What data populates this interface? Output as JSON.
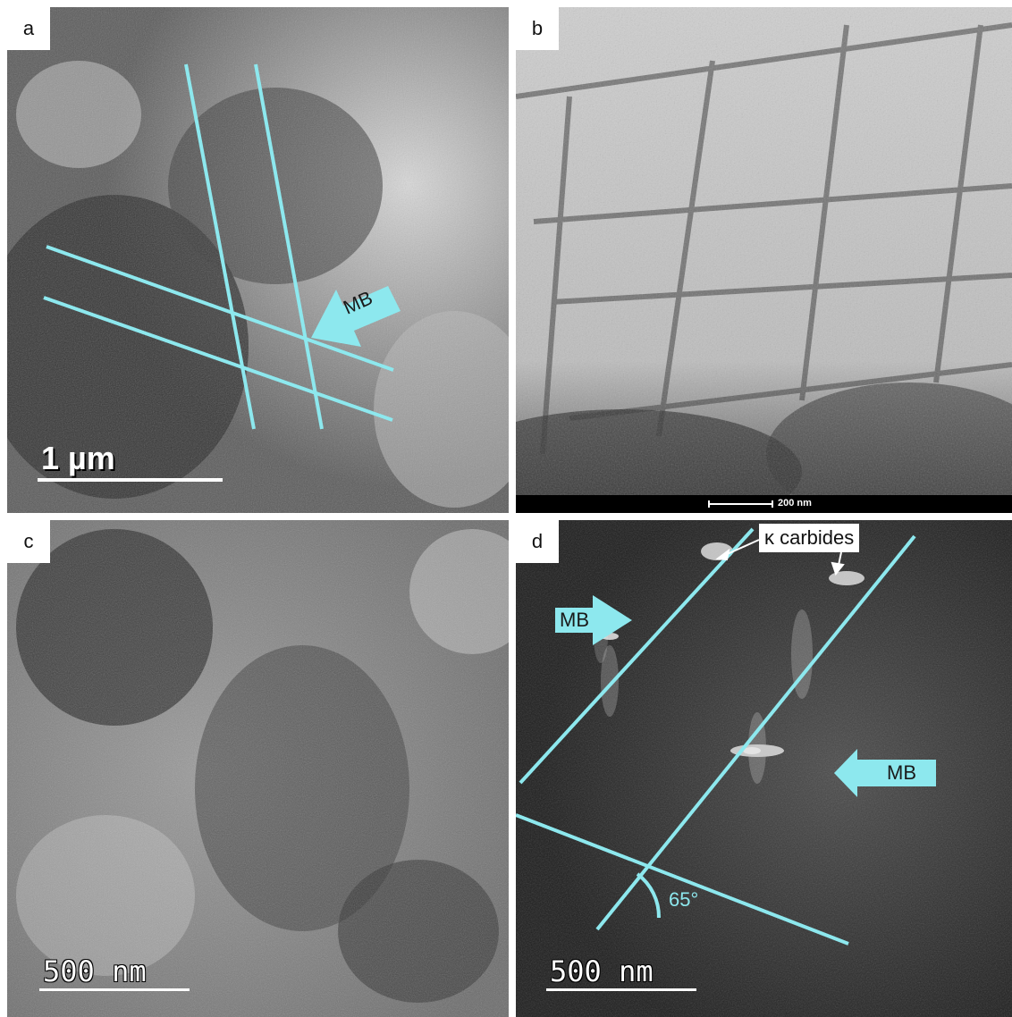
{
  "panels": {
    "a": {
      "label": "a",
      "scale_bar": "1 µm",
      "arrow_label": "MB"
    },
    "b": {
      "label": "b",
      "scale_bar": "200 nm"
    },
    "c": {
      "label": "c",
      "scale_bar": "500 nm"
    },
    "d": {
      "label": "d",
      "scale_bar": "500 nm",
      "callout": "κ carbides",
      "angle": "65°",
      "arrow_label_upper": "MB",
      "arrow_label_lower": "MB"
    }
  },
  "colors": {
    "annotation": "#8de8ee",
    "background": "#ffffff"
  }
}
